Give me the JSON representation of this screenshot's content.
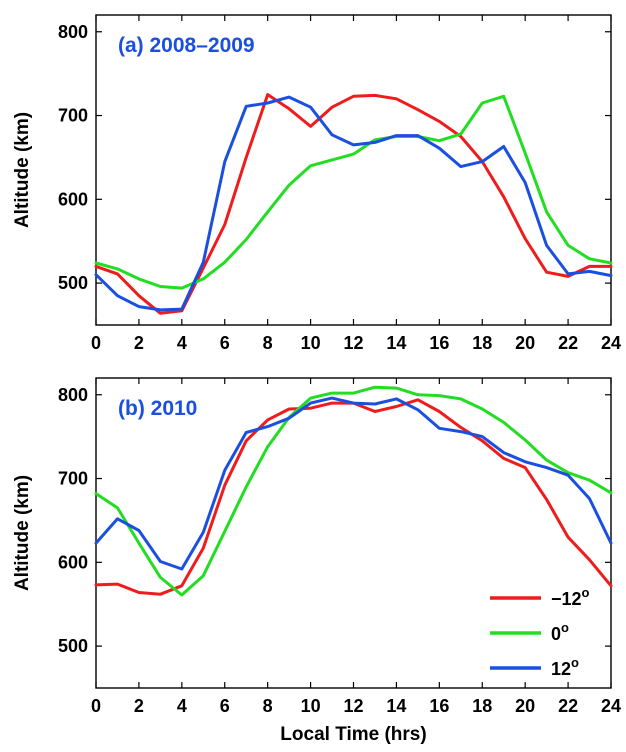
{
  "chart_data": [
    {
      "type": "line",
      "title": "(a) 2008–2009",
      "title_color": "#1a4fe0",
      "xlabel": "",
      "ylabel": "Altitude (km)",
      "xlim": [
        0,
        24
      ],
      "ylim": [
        450,
        820
      ],
      "x_ticks": [
        "0",
        "2",
        "4",
        "6",
        "8",
        "10",
        "12",
        "14",
        "16",
        "18",
        "20",
        "22",
        "24"
      ],
      "y_ticks": [
        "500",
        "600",
        "700",
        "800"
      ],
      "x": [
        0,
        1,
        2,
        3,
        4,
        5,
        6,
        7,
        8,
        9,
        10,
        11,
        12,
        13,
        14,
        15,
        16,
        17,
        18,
        19,
        20,
        21,
        22,
        23,
        24
      ],
      "series": [
        {
          "name": "−12",
          "color": "#ee1c1c",
          "values": [
            520,
            511,
            485,
            464,
            467,
            518,
            570,
            650,
            725,
            708,
            687,
            710,
            723,
            724,
            720,
            707,
            693,
            675,
            645,
            603,
            553,
            513,
            508,
            520,
            520
          ]
        },
        {
          "name": "0",
          "color": "#22dd22",
          "values": [
            524,
            517,
            505,
            496,
            494,
            505,
            525,
            552,
            585,
            617,
            640,
            647,
            654,
            671,
            675,
            675,
            670,
            678,
            715,
            723,
            655,
            585,
            545,
            529,
            524
          ]
        },
        {
          "name": "12",
          "color": "#1a4fe0",
          "values": [
            510,
            485,
            472,
            468,
            469,
            525,
            645,
            711,
            715,
            722,
            710,
            677,
            665,
            668,
            676,
            676,
            661,
            639,
            645,
            663,
            620,
            545,
            511,
            514,
            509
          ]
        }
      ]
    },
    {
      "type": "line",
      "title": "(b) 2010",
      "title_color": "#1a4fe0",
      "xlabel": "Local Time (hrs)",
      "ylabel": "Altitude (km)",
      "xlim": [
        0,
        24
      ],
      "ylim": [
        450,
        820
      ],
      "x_ticks": [
        "0",
        "2",
        "4",
        "6",
        "8",
        "10",
        "12",
        "14",
        "16",
        "18",
        "20",
        "22",
        "24"
      ],
      "y_ticks": [
        "500",
        "600",
        "700",
        "800"
      ],
      "x": [
        0,
        1,
        2,
        3,
        4,
        5,
        6,
        7,
        8,
        9,
        10,
        11,
        12,
        13,
        14,
        15,
        16,
        17,
        18,
        19,
        20,
        21,
        22,
        23,
        24
      ],
      "series": [
        {
          "name": "−12",
          "color": "#ee1c1c",
          "values": [
            573,
            574,
            564,
            562,
            572,
            617,
            692,
            745,
            770,
            783,
            784,
            790,
            790,
            780,
            786,
            794,
            780,
            761,
            745,
            724,
            713,
            675,
            630,
            603,
            572
          ]
        },
        {
          "name": "0",
          "color": "#22dd22",
          "values": [
            682,
            665,
            623,
            582,
            561,
            584,
            637,
            690,
            738,
            773,
            796,
            802,
            802,
            809,
            808,
            800,
            799,
            795,
            783,
            767,
            746,
            722,
            707,
            698,
            683
          ]
        },
        {
          "name": "12",
          "color": "#1a4fe0",
          "values": [
            623,
            652,
            638,
            601,
            592,
            636,
            710,
            755,
            762,
            772,
            790,
            796,
            790,
            789,
            795,
            782,
            760,
            756,
            750,
            731,
            720,
            713,
            704,
            676,
            623
          ]
        }
      ]
    }
  ],
  "legend": {
    "items": [
      {
        "label": "−12",
        "sup": "o",
        "color": "#ee1c1c"
      },
      {
        "label": "0",
        "sup": "o",
        "color": "#22dd22"
      },
      {
        "label": "12",
        "sup": "o",
        "color": "#1a4fe0"
      }
    ]
  }
}
